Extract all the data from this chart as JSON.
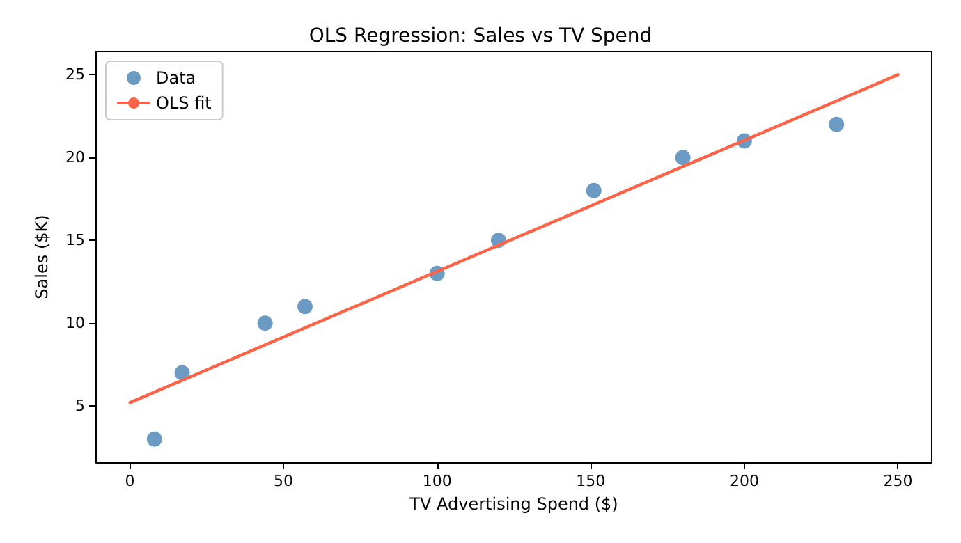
{
  "chart_data": {
    "type": "scatter",
    "title": "OLS Regression: Sales vs TV Spend",
    "xlabel": "TV Advertising Spend ($)",
    "ylabel": "Sales ($K)",
    "series": [
      {
        "name": "Data",
        "color": "#4682b4",
        "marker": "circle",
        "x": [
          8,
          17,
          44,
          57,
          100,
          120,
          151,
          180,
          200,
          230
        ],
        "values": [
          3,
          7,
          10,
          11,
          13,
          15,
          18,
          20,
          21,
          22
        ]
      },
      {
        "name": "OLS fit",
        "type": "line",
        "color": "#ff6347",
        "marker": "none",
        "line_style": "solid",
        "x": [
          0,
          250
        ],
        "values": [
          5.2,
          25
        ]
      }
    ],
    "xlim": [
      -11,
      261
    ],
    "xticks": [
      0,
      50,
      100,
      150,
      200,
      250
    ],
    "ylim": [
      1.6,
      26.4
    ],
    "yticks": [
      5,
      10,
      15,
      20,
      25
    ],
    "grid": false,
    "legend": "top left"
  }
}
